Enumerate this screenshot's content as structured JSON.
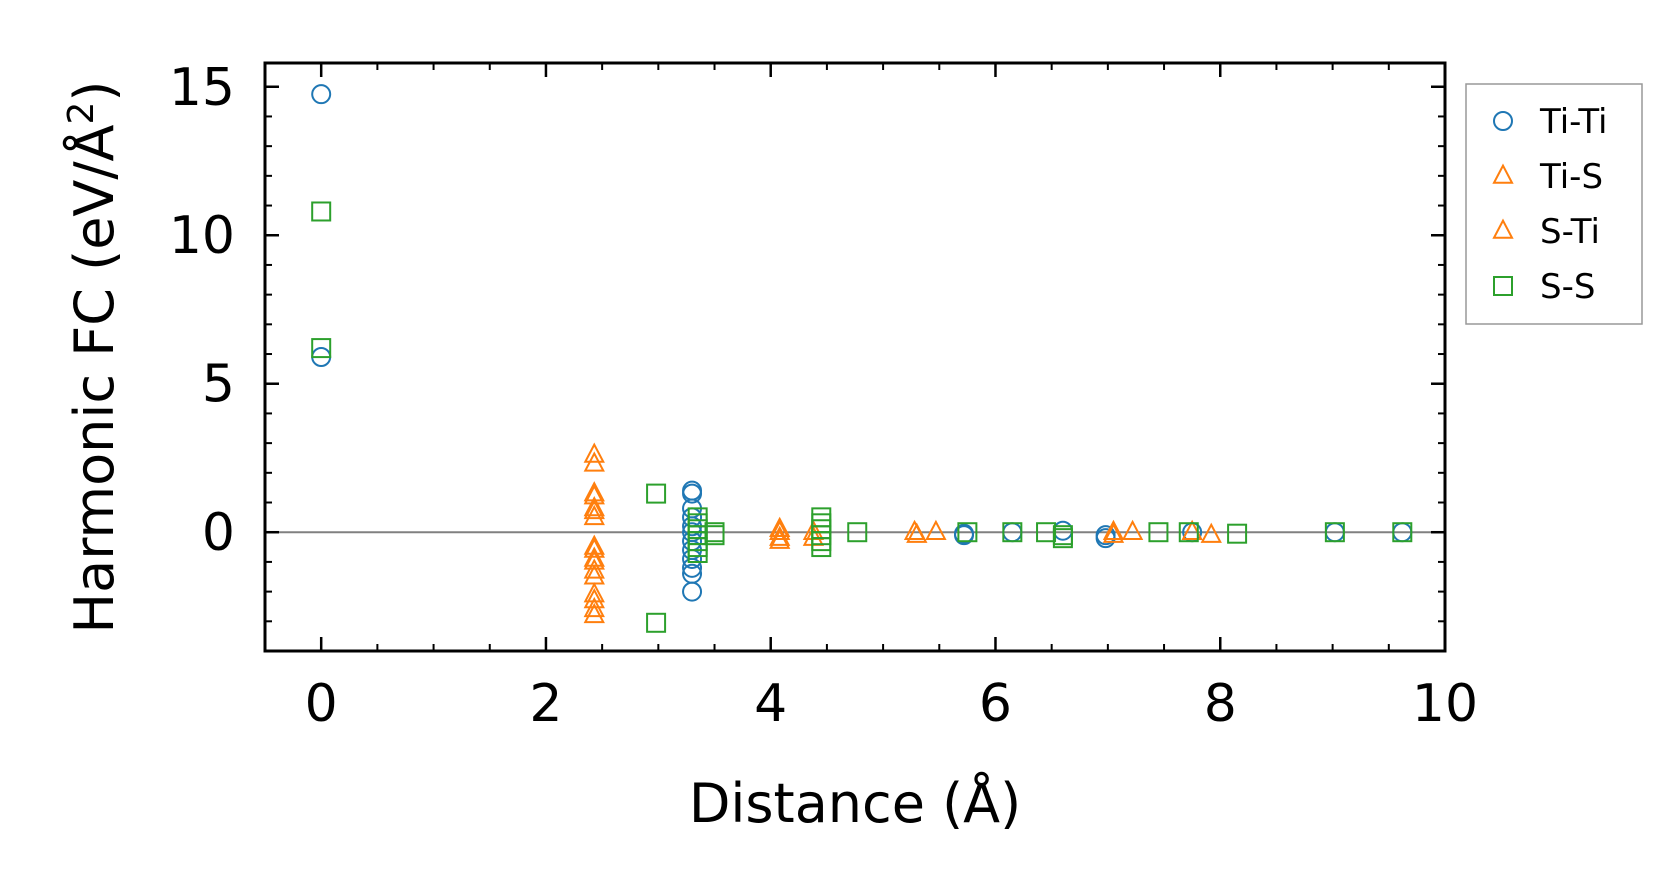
{
  "chart_data": {
    "type": "scatter",
    "xlabel": "Distance (Å)",
    "ylabel_main": "Harmonic FC (eV/Å",
    "ylabel_sup": "2",
    "ylabel_close": ")",
    "xlim": [
      -0.5,
      10
    ],
    "ylim": [
      -4,
      15.8
    ],
    "x_ticks": [
      0,
      2,
      4,
      6,
      8,
      10
    ],
    "x_tick_labels": [
      "0",
      "2",
      "4",
      "6",
      "8",
      "10"
    ],
    "y_ticks": [
      0,
      5,
      10,
      15
    ],
    "y_tick_labels": [
      "0",
      "5",
      "10",
      "15"
    ],
    "grid": false,
    "zero_line": true,
    "legend_position": "right, outside",
    "series": [
      {
        "name": "Ti-Ti",
        "marker": "circle",
        "color": "#1f77b4",
        "points": [
          [
            0,
            14.75
          ],
          [
            0,
            5.9
          ],
          [
            3.3,
            1.4
          ],
          [
            3.3,
            1.3
          ],
          [
            3.3,
            0.8
          ],
          [
            3.3,
            0.5
          ],
          [
            3.3,
            0.2
          ],
          [
            3.3,
            0.0
          ],
          [
            3.3,
            -0.3
          ],
          [
            3.3,
            -0.6
          ],
          [
            3.3,
            -0.9
          ],
          [
            3.3,
            -1.2
          ],
          [
            3.3,
            -1.4
          ],
          [
            3.3,
            -2.0
          ],
          [
            5.72,
            -0.05
          ],
          [
            5.72,
            -0.1
          ],
          [
            6.15,
            0.0
          ],
          [
            6.6,
            0.05
          ],
          [
            6.98,
            -0.1
          ],
          [
            6.98,
            -0.2
          ],
          [
            7.75,
            0.0
          ],
          [
            9.02,
            0.0
          ],
          [
            9.62,
            0.0
          ]
        ]
      },
      {
        "name": "Ti-S",
        "marker": "triangle",
        "color": "#ff7f0e",
        "points": [
          [
            2.43,
            2.6
          ],
          [
            2.43,
            1.3
          ],
          [
            2.43,
            0.8
          ],
          [
            2.43,
            0.5
          ],
          [
            2.43,
            -0.5
          ],
          [
            2.43,
            -0.9
          ],
          [
            2.43,
            -1.3
          ],
          [
            2.43,
            -2.1
          ],
          [
            2.43,
            -2.6
          ],
          [
            4.08,
            0.1
          ],
          [
            4.08,
            -0.2
          ],
          [
            4.38,
            -0.2
          ],
          [
            5.28,
            0.0
          ],
          [
            5.47,
            0.0
          ],
          [
            7.05,
            0.0
          ],
          [
            7.22,
            0.0
          ],
          [
            7.75,
            0.0
          ],
          [
            7.92,
            -0.1
          ]
        ]
      },
      {
        "name": "S-Ti",
        "marker": "triangle",
        "color": "#ff7f0e",
        "points": [
          [
            2.43,
            2.3
          ],
          [
            2.43,
            1.2
          ],
          [
            2.43,
            0.7
          ],
          [
            2.43,
            -0.6
          ],
          [
            2.43,
            -1.0
          ],
          [
            2.43,
            -1.5
          ],
          [
            2.43,
            -2.3
          ],
          [
            2.43,
            -2.8
          ],
          [
            4.08,
            0.0
          ],
          [
            4.08,
            -0.3
          ],
          [
            4.38,
            0.0
          ],
          [
            5.3,
            -0.1
          ],
          [
            7.05,
            -0.1
          ]
        ]
      },
      {
        "name": "S-S",
        "marker": "square",
        "color": "#2ca02c",
        "points": [
          [
            0,
            10.8
          ],
          [
            0,
            6.2
          ],
          [
            2.98,
            1.3
          ],
          [
            2.98,
            -3.05
          ],
          [
            3.35,
            0.5
          ],
          [
            3.35,
            0.3
          ],
          [
            3.35,
            0.1
          ],
          [
            3.35,
            -0.1
          ],
          [
            3.35,
            -0.3
          ],
          [
            3.35,
            -0.5
          ],
          [
            3.35,
            -0.7
          ],
          [
            3.5,
            0.0
          ],
          [
            3.5,
            -0.1
          ],
          [
            4.45,
            0.5
          ],
          [
            4.45,
            0.3
          ],
          [
            4.45,
            0.1
          ],
          [
            4.45,
            -0.1
          ],
          [
            4.45,
            -0.3
          ],
          [
            4.45,
            -0.5
          ],
          [
            4.77,
            0.0
          ],
          [
            5.75,
            0.0
          ],
          [
            6.15,
            0.0
          ],
          [
            6.45,
            0.0
          ],
          [
            6.6,
            -0.1
          ],
          [
            6.6,
            -0.2
          ],
          [
            7.45,
            0.0
          ],
          [
            7.72,
            0.0
          ],
          [
            8.15,
            -0.05
          ],
          [
            9.02,
            0.0
          ],
          [
            9.62,
            0.0
          ]
        ]
      }
    ]
  }
}
